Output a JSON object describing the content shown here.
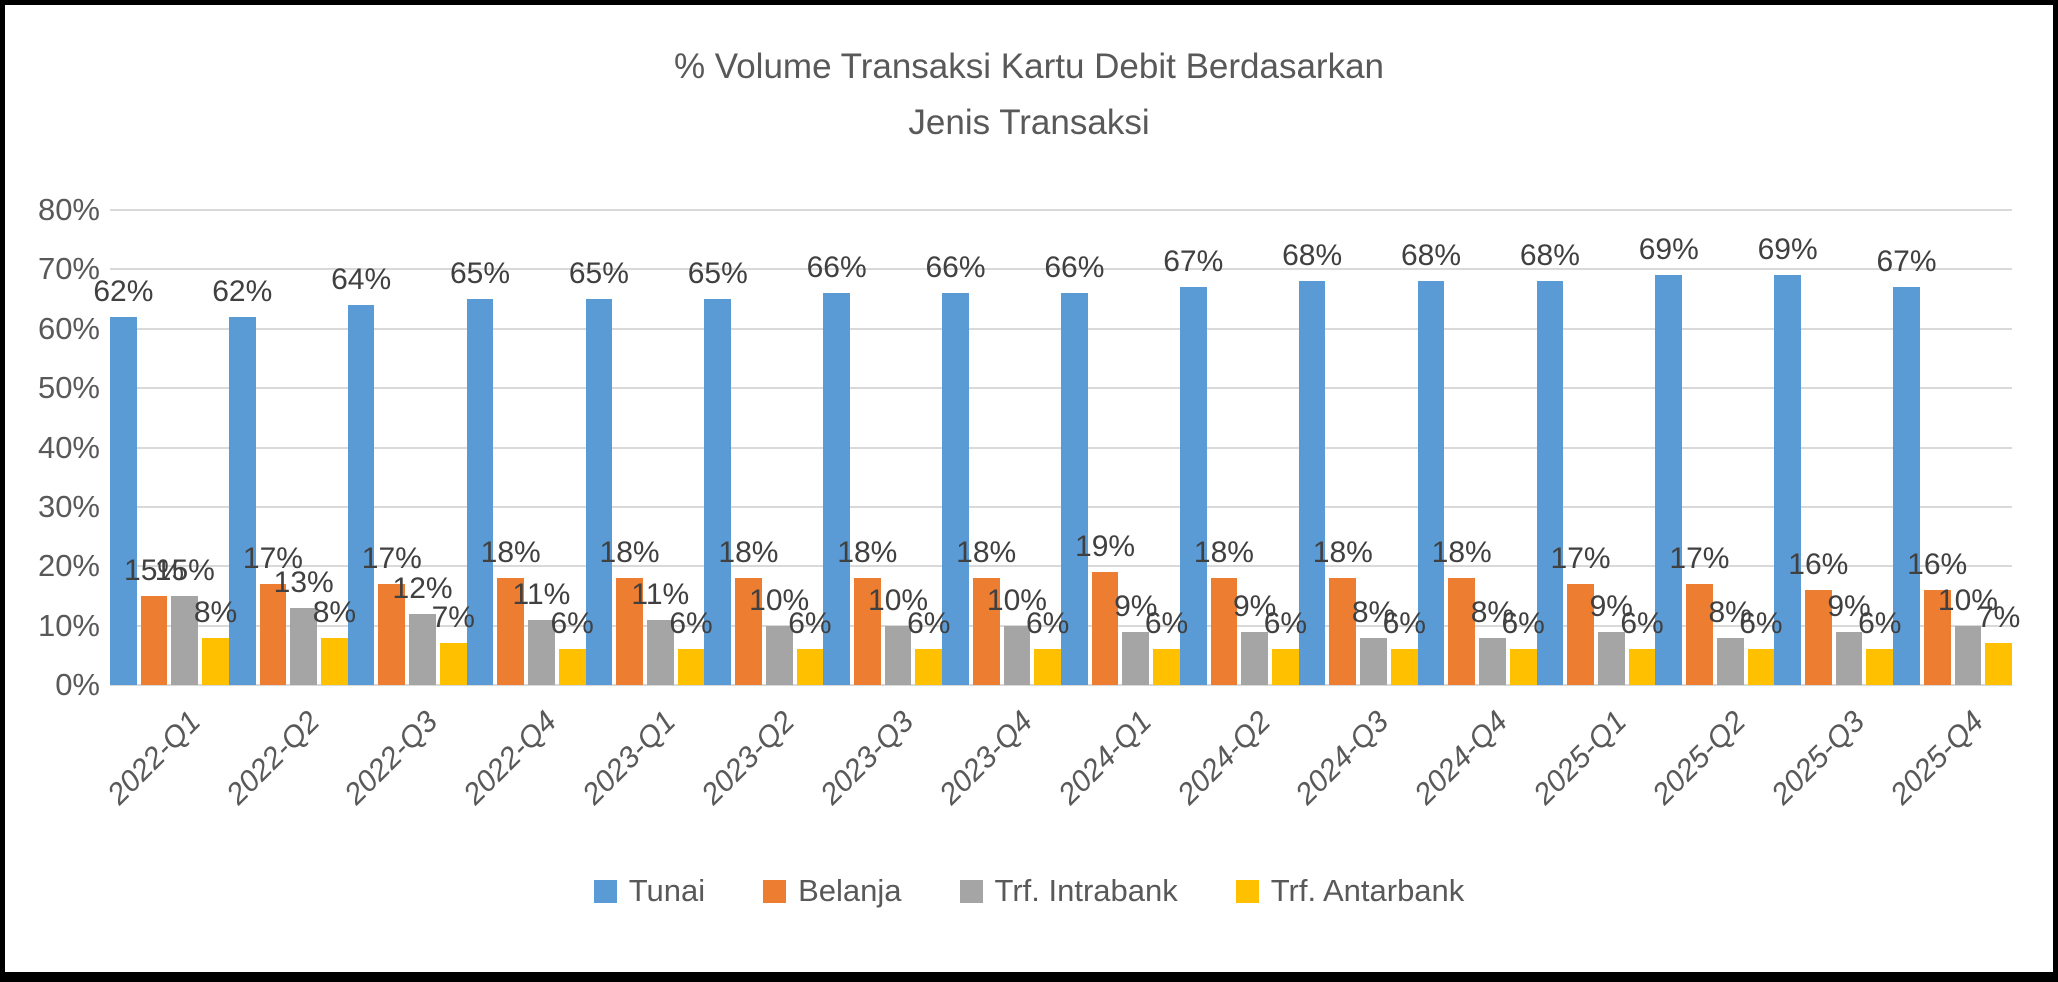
{
  "chart_data": {
    "type": "bar",
    "title": "% Volume Transaksi Kartu Debit Berdasarkan Jenis Transaksi",
    "title_line1": "% Volume Transaksi Kartu Debit Berdasarkan",
    "title_line2": "Jenis Transaksi",
    "categories": [
      "2022-Q1",
      "2022-Q2",
      "2022-Q3",
      "2022-Q4",
      "2023-Q1",
      "2023-Q2",
      "2023-Q3",
      "2023-Q4",
      "2024-Q1",
      "2024-Q2",
      "2024-Q3",
      "2024-Q4",
      "2025-Q1",
      "2025-Q2",
      "2025-Q3",
      "2025-Q4"
    ],
    "series": [
      {
        "name": "Tunai",
        "color": "#5B9BD5",
        "values": [
          62,
          62,
          64,
          65,
          65,
          65,
          66,
          66,
          66,
          67,
          68,
          68,
          68,
          69,
          69,
          67
        ]
      },
      {
        "name": "Belanja",
        "color": "#ED7D31",
        "values": [
          15,
          17,
          17,
          18,
          18,
          18,
          18,
          18,
          19,
          18,
          18,
          18,
          17,
          17,
          16,
          16
        ]
      },
      {
        "name": "Trf. Intrabank",
        "color": "#A5A5A5",
        "values": [
          15,
          13,
          12,
          11,
          11,
          10,
          10,
          10,
          9,
          9,
          8,
          8,
          9,
          8,
          9,
          10
        ]
      },
      {
        "name": "Trf. Antarbank",
        "color": "#FFC000",
        "values": [
          8,
          8,
          7,
          6,
          6,
          6,
          6,
          6,
          6,
          6,
          6,
          6,
          6,
          6,
          6,
          7
        ]
      }
    ],
    "ylim": [
      0,
      80
    ],
    "ytick_step": 10,
    "ytick_labels": [
      "0%",
      "10%",
      "20%",
      "30%",
      "40%",
      "50%",
      "60%",
      "70%",
      "80%"
    ],
    "data_label_suffix": "%",
    "grid": true,
    "legend_position": "bottom",
    "colors": {
      "grid": "#d9d9d9",
      "axis_text": "#595959",
      "data_label_text": "#404040",
      "title_text": "#595959"
    }
  }
}
